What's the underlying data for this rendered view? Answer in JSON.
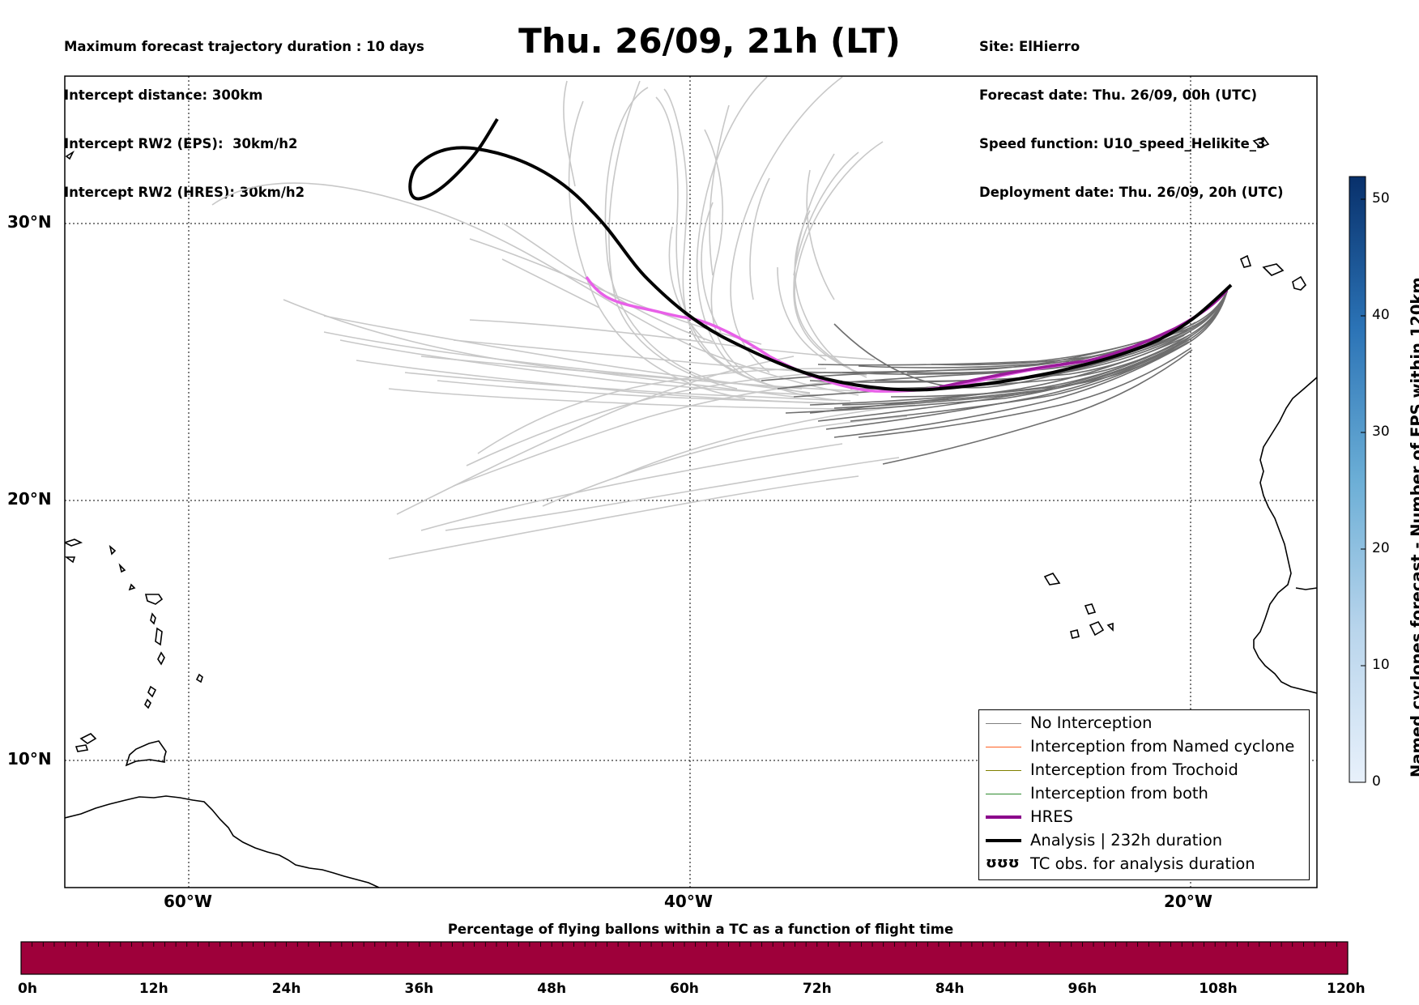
{
  "header": {
    "left_lines": [
      "Maximum forecast trajectory duration : 10 days",
      "Intercept distance: 300km",
      "Intercept RW2 (EPS):  30km/h2",
      "Intercept RW2 (HRES): 30km/h2"
    ],
    "title": "Thu. 26/09, 21h (LT)",
    "right_lines": [
      "Site: ElHierro",
      "Forecast date: Thu. 26/09, 00h (UTC)",
      "Speed function: U10_speed_Helikite_3",
      "Deployment date: Thu. 26/09, 20h (UTC)"
    ]
  },
  "map": {
    "lon_labels": [
      "60°W",
      "40°W",
      "20°W"
    ],
    "lat_labels": [
      "30°N",
      "20°N",
      "10°N"
    ],
    "gridlines": "dotted",
    "lon_range": [
      -65,
      -15
    ],
    "lat_range": [
      5,
      34.5
    ]
  },
  "legend": {
    "items": [
      {
        "label": "No Interception",
        "color": "#808080",
        "style": "thin"
      },
      {
        "label": "Interception from Named cyclone",
        "color": "#ff6020",
        "style": "thin"
      },
      {
        "label": "Interception from Trochoid",
        "color": "#808000",
        "style": "thin"
      },
      {
        "label": "Interception from both",
        "color": "#2e8b2e",
        "style": "thin"
      },
      {
        "label": "HRES",
        "color": "#8b008b",
        "style": "thick"
      },
      {
        "label": "Analysis | 232h duration",
        "color": "#000000",
        "style": "thick"
      },
      {
        "label": "TC obs. for analysis duration",
        "color": "#000000",
        "style": "symbol",
        "symbol": "ʊʊʊ"
      }
    ]
  },
  "colorbar_right": {
    "label": "Named cyclones forecast - Number of EPS within 120km",
    "ticks": [
      "0",
      "10",
      "20",
      "30",
      "40",
      "50"
    ],
    "range": [
      0,
      52
    ],
    "color_low": "#e4eef9",
    "color_high": "#08306b"
  },
  "colorbar_bottom": {
    "title": "Percentage of flying ballons within a TC as a function of flight time",
    "ticks": [
      "0h",
      "12h",
      "24h",
      "36h",
      "48h",
      "60h",
      "72h",
      "84h",
      "96h",
      "108h",
      "120h"
    ],
    "fill_color": "#9e003a"
  },
  "colors": {
    "eps_light": "#c8c8c8",
    "eps_dark": "#6e6e6e",
    "hres_color": "#e860e8",
    "hres_end_color": "#9b1a9b",
    "analysis": "#000000"
  }
}
